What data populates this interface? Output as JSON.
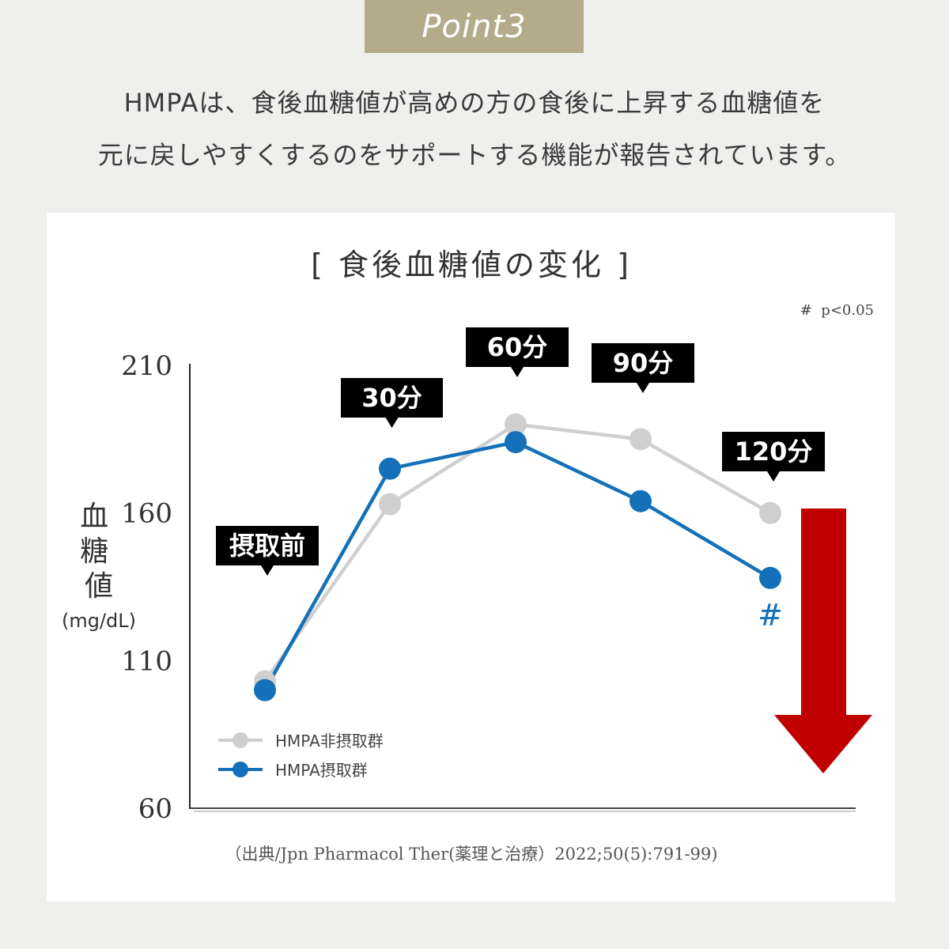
{
  "badge": "Point3",
  "intro": {
    "line1": "HMPAは、食後血糖値が高めの方の食後に上昇する血糖値を",
    "line2": "元に戻しやすくするのをサポートする機能が報告されています。"
  },
  "footnote": "（出典/Jpn Pharmacol Ther(薬理と治療）2022;50(5):791-99)",
  "colors": {
    "badge": "#b4ab8b",
    "hmpa": "#1470b8",
    "control": "#cfcfcf",
    "arrow": "#c00000",
    "label_bg": "#000000"
  },
  "chart_data": {
    "type": "line",
    "title": "[ 食後血糖値の変化 ]",
    "note": "#  p<0.05",
    "ylabel": "血糖値",
    "yunit": "(mg/dL)",
    "ylim": [
      60,
      210
    ],
    "yticks": [
      "210",
      "160",
      "110",
      "60"
    ],
    "categories": [
      "摂取前",
      "30分",
      "60分",
      "90分",
      "120分"
    ],
    "series": [
      {
        "name": "HMPA非摂取群",
        "color": "#cfcfcf",
        "values": [
          103,
          163,
          190,
          185,
          160
        ]
      },
      {
        "name": "HMPA摂取群",
        "color": "#1470b8",
        "values": [
          100,
          175,
          184,
          164,
          138
        ]
      }
    ],
    "significance": {
      "category": "120分",
      "marker": "#"
    },
    "legend": "bottom-left"
  }
}
